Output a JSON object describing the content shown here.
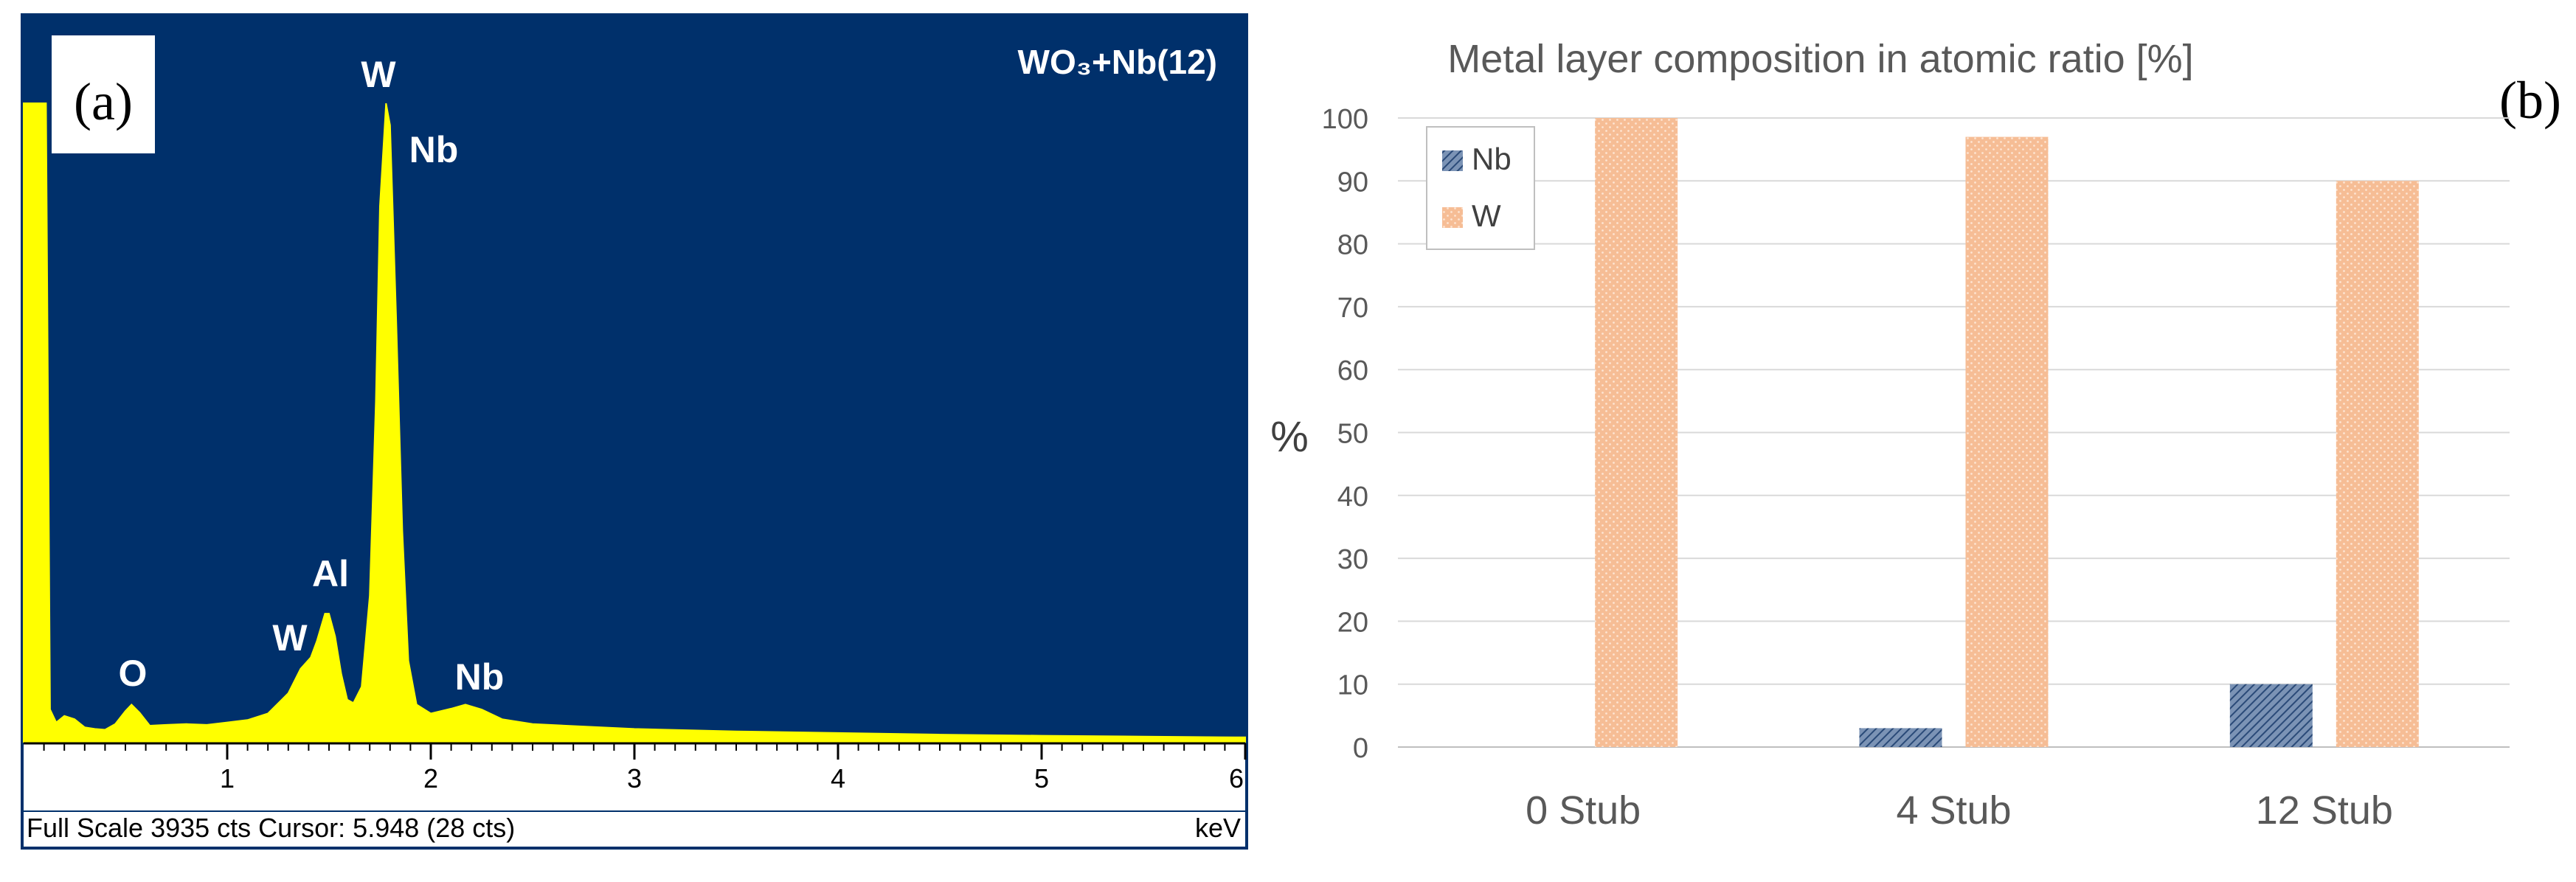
{
  "chart_data": [
    {
      "type": "line",
      "panel_label": "(a)",
      "sample_label": "WO₃+Nb(12)",
      "x_ticks": [
        "1",
        "2",
        "3",
        "4",
        "5",
        "6"
      ],
      "x_unit": "keV",
      "xlim": [
        0,
        6
      ],
      "ylim": [
        0,
        3935
      ],
      "status_text": "Full Scale 3935 cts Cursor: 5.948  (28 cts)",
      "peak_labels": [
        {
          "text": "O",
          "energy": 0.52
        },
        {
          "text": "W",
          "energy": 1.38
        },
        {
          "text": "Al",
          "energy": 1.49
        },
        {
          "text": "W",
          "energy": 1.77
        },
        {
          "text": "Nb",
          "energy": 1.95
        },
        {
          "text": "Nb",
          "energy": 2.25
        }
      ],
      "spectrum": [
        [
          0.0,
          3935
        ],
        [
          0.1,
          3935
        ],
        [
          0.11,
          3935
        ],
        [
          0.13,
          200
        ],
        [
          0.16,
          120
        ],
        [
          0.2,
          160
        ],
        [
          0.25,
          140
        ],
        [
          0.3,
          90
        ],
        [
          0.35,
          80
        ],
        [
          0.4,
          75
        ],
        [
          0.45,
          110
        ],
        [
          0.5,
          190
        ],
        [
          0.53,
          230
        ],
        [
          0.57,
          180
        ],
        [
          0.62,
          100
        ],
        [
          0.7,
          105
        ],
        [
          0.8,
          110
        ],
        [
          0.9,
          105
        ],
        [
          1.0,
          120
        ],
        [
          1.1,
          135
        ],
        [
          1.2,
          175
        ],
        [
          1.3,
          300
        ],
        [
          1.36,
          450
        ],
        [
          1.41,
          520
        ],
        [
          1.44,
          620
        ],
        [
          1.48,
          790
        ],
        [
          1.5,
          790
        ],
        [
          1.53,
          650
        ],
        [
          1.56,
          420
        ],
        [
          1.59,
          260
        ],
        [
          1.62,
          240
        ],
        [
          1.66,
          340
        ],
        [
          1.7,
          900
        ],
        [
          1.73,
          2100
        ],
        [
          1.75,
          3300
        ],
        [
          1.78,
          3935
        ],
        [
          1.8,
          3800
        ],
        [
          1.83,
          2600
        ],
        [
          1.86,
          1300
        ],
        [
          1.89,
          500
        ],
        [
          1.93,
          230
        ],
        [
          2.0,
          175
        ],
        [
          2.1,
          205
        ],
        [
          2.17,
          230
        ],
        [
          2.25,
          200
        ],
        [
          2.35,
          140
        ],
        [
          2.5,
          110
        ],
        [
          3.0,
          80
        ],
        [
          3.5,
          65
        ],
        [
          4.0,
          55
        ],
        [
          4.5,
          45
        ],
        [
          5.0,
          38
        ],
        [
          5.5,
          33
        ],
        [
          5.95,
          28
        ],
        [
          6.0,
          28
        ]
      ],
      "colors": {
        "background": "#00306b",
        "trace": "#ffff00",
        "label": "#ffffff"
      }
    },
    {
      "type": "bar",
      "panel_label": "(b)",
      "title": "Metal layer composition in atomic ratio [%]",
      "ylabel": "%",
      "ylim": [
        0,
        100
      ],
      "yticks": [
        "0",
        "10",
        "20",
        "30",
        "40",
        "50",
        "60",
        "70",
        "80",
        "90",
        "100"
      ],
      "categories": [
        "0 Stub",
        "4 Stub",
        "12 Stub"
      ],
      "series": [
        {
          "name": "Nb",
          "values": [
            0,
            3,
            10
          ],
          "color": "#44648f"
        },
        {
          "name": "W",
          "values": [
            100,
            97,
            90
          ],
          "color": "#f6bd95"
        }
      ],
      "grid": true,
      "legend_position": "top-left"
    }
  ]
}
